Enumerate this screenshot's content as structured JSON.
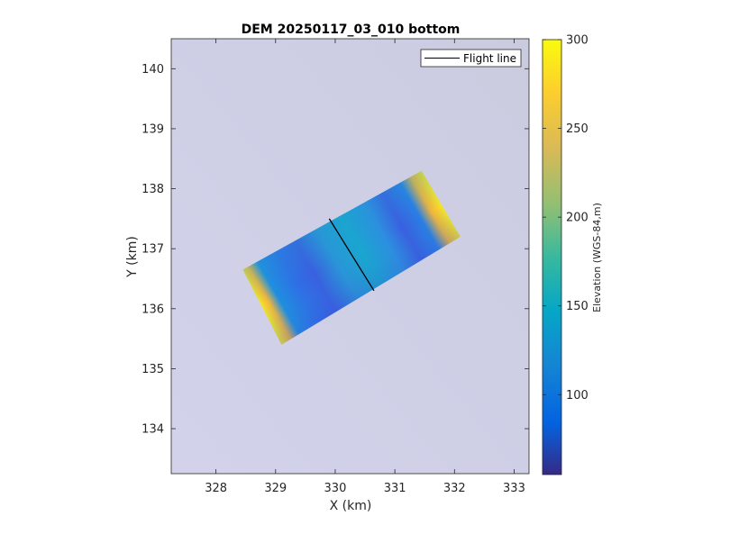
{
  "chart_data": {
    "type": "heatmap",
    "title": "DEM 20250117_03_010 bottom",
    "xlabel": "X (km)",
    "ylabel": "Y (km)",
    "xlim": [
      327.25,
      333.25
    ],
    "ylim": [
      133.25,
      140.5
    ],
    "xticks": [
      328,
      329,
      330,
      331,
      332,
      333
    ],
    "yticks": [
      134,
      135,
      136,
      137,
      138,
      139,
      140
    ],
    "grid": false,
    "legend": {
      "placement": "top-right",
      "entries": [
        "Flight line"
      ]
    },
    "colorbar": {
      "label": "Elevation (WGS-84,m)",
      "range": [
        55,
        300
      ],
      "ticks": [
        100,
        150,
        200,
        250,
        300
      ],
      "colormap": "parula"
    },
    "dem_swath_corners_km": [
      [
        328.45,
        136.65
      ],
      [
        331.45,
        138.3
      ],
      [
        332.1,
        137.2
      ],
      [
        329.1,
        135.4
      ]
    ],
    "flight_line": {
      "x": [
        329.9,
        330.65
      ],
      "y": [
        137.5,
        136.3
      ]
    },
    "elevation_pattern": "edges high (~280-300 m, yellow), interior ~100-170 m (blue/teal)"
  },
  "colors": {
    "background_raster": "#d0d0e6",
    "flight_line": "#000000",
    "low": "#352a87",
    "mid": "#0fadc0",
    "high": "#f9fb0e"
  }
}
